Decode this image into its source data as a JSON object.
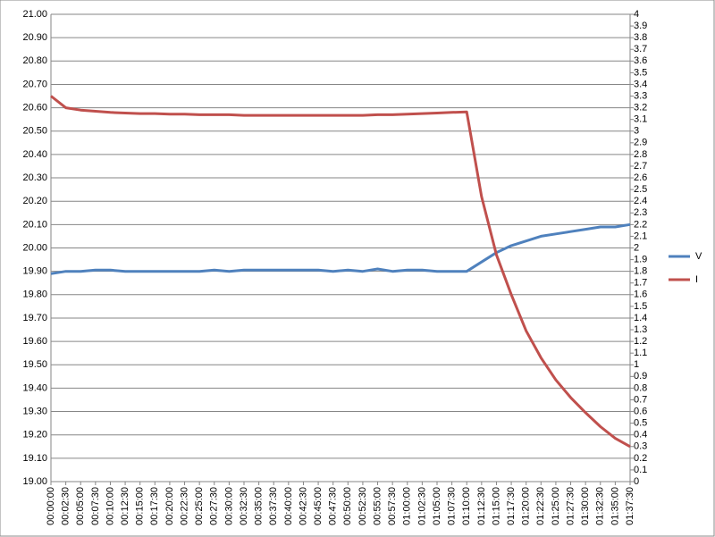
{
  "chart_data": {
    "type": "line",
    "categories": [
      "00:00:00",
      "00:02:30",
      "00:05:00",
      "00:07:30",
      "00:10:00",
      "00:12:30",
      "00:15:00",
      "00:17:30",
      "00:20:00",
      "00:22:30",
      "00:25:00",
      "00:27:30",
      "00:30:00",
      "00:32:30",
      "00:35:00",
      "00:37:30",
      "00:40:00",
      "00:42:30",
      "00:45:00",
      "00:47:30",
      "00:50:00",
      "00:52:30",
      "00:55:00",
      "00:57:30",
      "01:00:00",
      "01:02:30",
      "01:05:00",
      "01:07:30",
      "01:10:00",
      "01:12:30",
      "01:15:00",
      "01:17:30",
      "01:20:00",
      "01:22:30",
      "01:25:00",
      "01:27:30",
      "01:30:00",
      "01:32:30",
      "01:35:00",
      "01:37:30"
    ],
    "series": [
      {
        "name": "V",
        "color": "#4f81bd",
        "values": [
          19.89,
          19.9,
          19.9,
          19.905,
          19.905,
          19.9,
          19.9,
          19.9,
          19.9,
          19.9,
          19.9,
          19.905,
          19.9,
          19.905,
          19.905,
          19.905,
          19.905,
          19.905,
          19.905,
          19.9,
          19.905,
          19.9,
          19.91,
          19.9,
          19.905,
          19.905,
          19.9,
          19.9,
          19.9,
          19.94,
          19.98,
          20.01,
          20.03,
          20.05,
          20.06,
          20.07,
          20.08,
          20.09,
          20.09,
          20.1
        ]
      },
      {
        "name": "I",
        "color": "#c0504d",
        "axis": "y2",
        "values": [
          3.3,
          3.2,
          3.18,
          3.17,
          3.16,
          3.155,
          3.15,
          3.15,
          3.145,
          3.145,
          3.14,
          3.14,
          3.14,
          3.135,
          3.135,
          3.135,
          3.135,
          3.135,
          3.135,
          3.135,
          3.135,
          3.135,
          3.14,
          3.14,
          3.145,
          3.15,
          3.155,
          3.16,
          3.165,
          2.44,
          1.94,
          1.6,
          1.29,
          1.06,
          0.87,
          0.72,
          0.59,
          0.47,
          0.37,
          0.3
        ]
      }
    ],
    "ylim": [
      19,
      21
    ],
    "yticks": [
      {
        "value": 19,
        "label": "19.00"
      },
      {
        "value": 19.1,
        "label": "19.10"
      },
      {
        "value": 19.2,
        "label": "19.20"
      },
      {
        "value": 19.3,
        "label": "19.30"
      },
      {
        "value": 19.4,
        "label": "19.40"
      },
      {
        "value": 19.5,
        "label": "19.50"
      },
      {
        "value": 19.6,
        "label": "19.60"
      },
      {
        "value": 19.7,
        "label": "19.70"
      },
      {
        "value": 19.8,
        "label": "19.80"
      },
      {
        "value": 19.9,
        "label": "19.90"
      },
      {
        "value": 20,
        "label": "20.00"
      },
      {
        "value": 20.1,
        "label": "20.10"
      },
      {
        "value": 20.2,
        "label": "20.20"
      },
      {
        "value": 20.3,
        "label": "20.30"
      },
      {
        "value": 20.4,
        "label": "20.40"
      },
      {
        "value": 20.5,
        "label": "20.50"
      },
      {
        "value": 20.6,
        "label": "20.60"
      },
      {
        "value": 20.7,
        "label": "20.70"
      },
      {
        "value": 20.8,
        "label": "20.80"
      },
      {
        "value": 20.9,
        "label": "20.90"
      },
      {
        "value": 21,
        "label": "21.00"
      }
    ],
    "y2lim": [
      0,
      4
    ],
    "y2ticks": [
      0,
      0.1,
      0.2,
      0.3,
      0.4,
      0.5,
      0.6,
      0.7,
      0.8,
      0.9,
      1,
      1.1,
      1.2,
      1.3,
      1.4,
      1.5,
      1.6,
      1.7,
      1.8,
      1.9,
      2,
      2.1,
      2.2,
      2.3,
      2.4,
      2.5,
      2.6,
      2.7,
      2.8,
      2.9,
      3,
      3.1,
      3.2,
      3.3,
      3.4,
      3.5,
      3.6,
      3.7,
      3.8,
      3.9,
      4
    ],
    "grid": true,
    "legend": "right"
  }
}
